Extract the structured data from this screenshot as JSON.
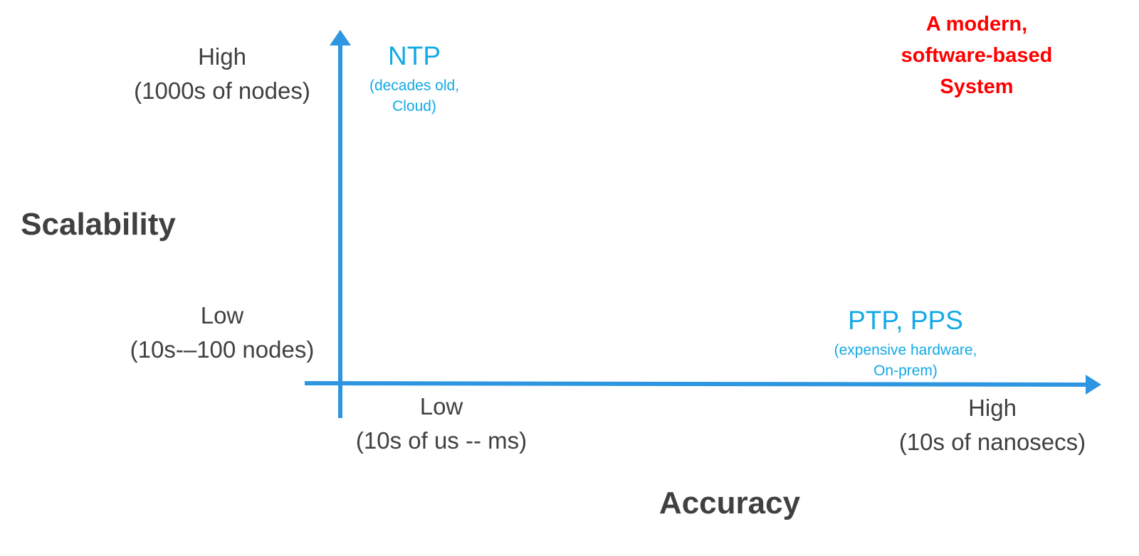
{
  "axes": {
    "y": {
      "title": "Scalability",
      "high": {
        "line1": "High",
        "line2": "(1000s of nodes)"
      },
      "low": {
        "line1": "Low",
        "line2": "(10s-–100 nodes)"
      }
    },
    "x": {
      "title": "Accuracy",
      "low": {
        "line1": "Low",
        "line2": "(10s of us -- ms)"
      },
      "high": {
        "line1": "High",
        "line2": "(10s of nanosecs)"
      }
    }
  },
  "systems": {
    "ntp": {
      "name": "NTP",
      "note_line1": "(decades old,",
      "note_line2": "Cloud)"
    },
    "ptp": {
      "name": "PTP, PPS",
      "note_line1": "(expensive hardware,",
      "note_line2": "On-prem)"
    }
  },
  "target": {
    "line1": "A modern,",
    "line2": "software-based",
    "line3": "System"
  },
  "colors": {
    "axis": "#2e96e0",
    "system_text": "#12a9e6",
    "target_text": "#ff0000",
    "label_text": "#404040"
  }
}
